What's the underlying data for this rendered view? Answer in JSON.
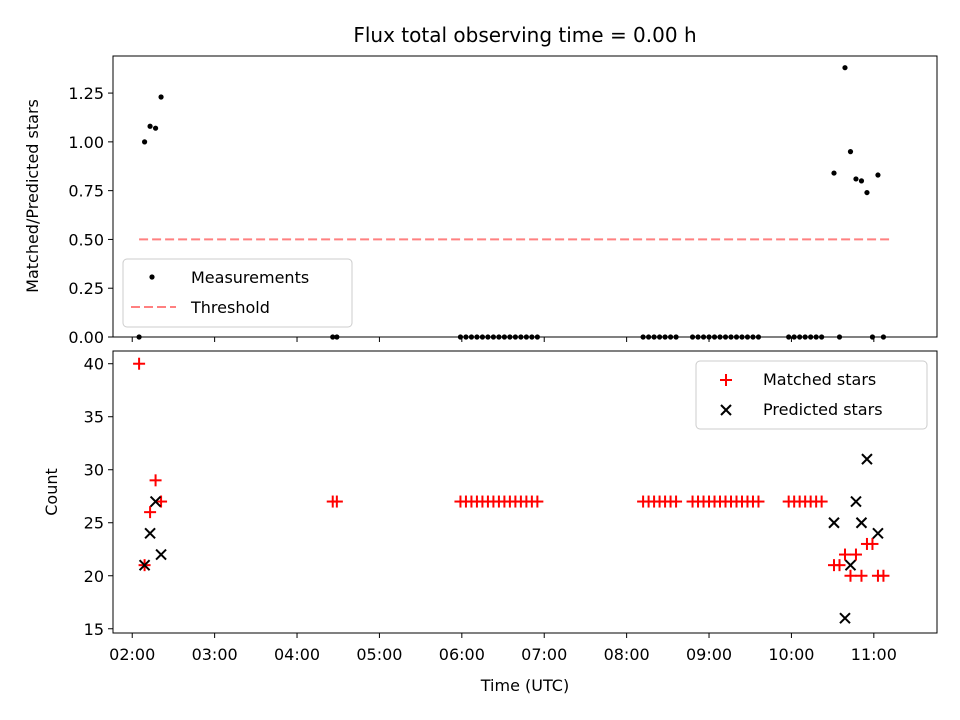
{
  "chart_data": [
    {
      "panel": "ratio",
      "type": "scatter",
      "title": "Flux total observing time = 0.00 h",
      "xlabel": "",
      "ylabel": "Matched/Predicted stars",
      "xlim": [
        "01:46",
        "11:46"
      ],
      "ylim": [
        0,
        1.44
      ],
      "yticks": [
        0.0,
        0.25,
        0.5,
        0.75,
        1.0,
        1.25
      ],
      "ytick_labels": [
        "0.00",
        "0.25",
        "0.50",
        "0.75",
        "1.00",
        "1.25"
      ],
      "grid": false,
      "legend": "lower-left",
      "series": [
        {
          "name": "Measurements",
          "marker": "dot",
          "color": "#000000",
          "points": [
            [
              "02:05",
              0.0
            ],
            [
              "02:09",
              1.0
            ],
            [
              "02:13",
              1.08
            ],
            [
              "02:17",
              1.07
            ],
            [
              "02:21",
              1.23
            ],
            [
              "04:26",
              0.0
            ],
            [
              "04:29",
              0.0
            ],
            [
              "05:59",
              0.0
            ],
            [
              "06:03",
              0.0
            ],
            [
              "06:07",
              0.0
            ],
            [
              "06:11",
              0.0
            ],
            [
              "06:15",
              0.0
            ],
            [
              "06:19",
              0.0
            ],
            [
              "06:23",
              0.0
            ],
            [
              "06:27",
              0.0
            ],
            [
              "06:31",
              0.0
            ],
            [
              "06:35",
              0.0
            ],
            [
              "06:39",
              0.0
            ],
            [
              "06:43",
              0.0
            ],
            [
              "06:47",
              0.0
            ],
            [
              "06:51",
              0.0
            ],
            [
              "06:55",
              0.0
            ],
            [
              "08:12",
              0.0
            ],
            [
              "08:16",
              0.0
            ],
            [
              "08:20",
              0.0
            ],
            [
              "08:24",
              0.0
            ],
            [
              "08:28",
              0.0
            ],
            [
              "08:32",
              0.0
            ],
            [
              "08:36",
              0.0
            ],
            [
              "08:48",
              0.0
            ],
            [
              "08:52",
              0.0
            ],
            [
              "08:56",
              0.0
            ],
            [
              "09:00",
              0.0
            ],
            [
              "09:04",
              0.0
            ],
            [
              "09:08",
              0.0
            ],
            [
              "09:12",
              0.0
            ],
            [
              "09:16",
              0.0
            ],
            [
              "09:20",
              0.0
            ],
            [
              "09:24",
              0.0
            ],
            [
              "09:28",
              0.0
            ],
            [
              "09:32",
              0.0
            ],
            [
              "09:36",
              0.0
            ],
            [
              "09:58",
              0.0
            ],
            [
              "10:02",
              0.0
            ],
            [
              "10:06",
              0.0
            ],
            [
              "10:10",
              0.0
            ],
            [
              "10:14",
              0.0
            ],
            [
              "10:18",
              0.0
            ],
            [
              "10:22",
              0.0
            ],
            [
              "10:31",
              0.84
            ],
            [
              "10:35",
              0.0
            ],
            [
              "10:39",
              1.38
            ],
            [
              "10:43",
              0.95
            ],
            [
              "10:47",
              0.81
            ],
            [
              "10:51",
              0.8
            ],
            [
              "10:55",
              0.74
            ],
            [
              "10:59",
              0.0
            ],
            [
              "11:03",
              0.83
            ],
            [
              "11:07",
              0.0
            ]
          ]
        },
        {
          "name": "Threshold",
          "style": "dashed",
          "color": "#ff8080",
          "points": [
            [
              "02:05",
              0.5
            ],
            [
              "11:12",
              0.5
            ]
          ]
        }
      ]
    },
    {
      "panel": "counts",
      "type": "scatter",
      "title": "",
      "xlabel": "Time (UTC)",
      "ylabel": "Count",
      "xlim": [
        "01:46",
        "11:46"
      ],
      "ylim": [
        14.6,
        41.2
      ],
      "xticks": [
        "02:00",
        "03:00",
        "04:00",
        "05:00",
        "06:00",
        "07:00",
        "08:00",
        "09:00",
        "10:00",
        "11:00"
      ],
      "yticks": [
        15,
        20,
        25,
        30,
        35,
        40
      ],
      "grid": false,
      "legend": "upper-right",
      "series": [
        {
          "name": "Matched stars",
          "marker": "plus",
          "color": "#ff0000",
          "points": [
            [
              "02:05",
              40
            ],
            [
              "02:09",
              21
            ],
            [
              "02:13",
              26
            ],
            [
              "02:17",
              29
            ],
            [
              "02:21",
              27
            ],
            [
              "04:26",
              27
            ],
            [
              "04:29",
              27
            ],
            [
              "05:59",
              27
            ],
            [
              "06:03",
              27
            ],
            [
              "06:07",
              27
            ],
            [
              "06:11",
              27
            ],
            [
              "06:15",
              27
            ],
            [
              "06:19",
              27
            ],
            [
              "06:23",
              27
            ],
            [
              "06:27",
              27
            ],
            [
              "06:31",
              27
            ],
            [
              "06:35",
              27
            ],
            [
              "06:39",
              27
            ],
            [
              "06:43",
              27
            ],
            [
              "06:47",
              27
            ],
            [
              "06:51",
              27
            ],
            [
              "06:55",
              27
            ],
            [
              "08:12",
              27
            ],
            [
              "08:16",
              27
            ],
            [
              "08:20",
              27
            ],
            [
              "08:24",
              27
            ],
            [
              "08:28",
              27
            ],
            [
              "08:32",
              27
            ],
            [
              "08:36",
              27
            ],
            [
              "08:48",
              27
            ],
            [
              "08:52",
              27
            ],
            [
              "08:56",
              27
            ],
            [
              "09:00",
              27
            ],
            [
              "09:04",
              27
            ],
            [
              "09:08",
              27
            ],
            [
              "09:12",
              27
            ],
            [
              "09:16",
              27
            ],
            [
              "09:20",
              27
            ],
            [
              "09:24",
              27
            ],
            [
              "09:28",
              27
            ],
            [
              "09:32",
              27
            ],
            [
              "09:36",
              27
            ],
            [
              "09:58",
              27
            ],
            [
              "10:02",
              27
            ],
            [
              "10:06",
              27
            ],
            [
              "10:10",
              27
            ],
            [
              "10:14",
              27
            ],
            [
              "10:18",
              27
            ],
            [
              "10:22",
              27
            ],
            [
              "10:31",
              21
            ],
            [
              "10:35",
              21
            ],
            [
              "10:39",
              22
            ],
            [
              "10:43",
              20
            ],
            [
              "10:47",
              22
            ],
            [
              "10:51",
              20
            ],
            [
              "10:55",
              23
            ],
            [
              "10:59",
              23
            ],
            [
              "11:03",
              20
            ],
            [
              "11:07",
              20
            ]
          ]
        },
        {
          "name": "Predicted stars",
          "marker": "x",
          "color": "#000000",
          "points": [
            [
              "02:09",
              21
            ],
            [
              "02:13",
              24
            ],
            [
              "02:17",
              27
            ],
            [
              "02:21",
              22
            ],
            [
              "10:31",
              25
            ],
            [
              "10:39",
              16
            ],
            [
              "10:43",
              21
            ],
            [
              "10:47",
              27
            ],
            [
              "10:51",
              25
            ],
            [
              "10:55",
              31
            ],
            [
              "11:03",
              24
            ]
          ]
        }
      ]
    }
  ]
}
